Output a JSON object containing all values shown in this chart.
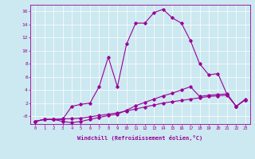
{
  "xlabel": "Windchill (Refroidissement éolien,°C)",
  "background_color": "#cce8f0",
  "line_color": "#990099",
  "xlim": [
    -0.5,
    23.5
  ],
  "ylim": [
    -1.2,
    17
  ],
  "yticks": [
    0,
    2,
    4,
    6,
    8,
    10,
    12,
    14,
    16
  ],
  "ytick_labels": [
    "-0",
    "2",
    "4",
    "6",
    "8",
    "10",
    "12",
    "14",
    "16"
  ],
  "xticks": [
    0,
    1,
    2,
    3,
    4,
    5,
    6,
    7,
    8,
    9,
    10,
    11,
    12,
    13,
    14,
    15,
    16,
    17,
    18,
    19,
    20,
    21,
    22,
    23
  ],
  "lines": [
    {
      "x": [
        0,
        1,
        2,
        3,
        4,
        5,
        6,
        7,
        8,
        9,
        10,
        11,
        12,
        13,
        14,
        15,
        16,
        17,
        18,
        19,
        20,
        21,
        22,
        23
      ],
      "y": [
        -0.8,
        -0.5,
        -0.5,
        -0.4,
        -0.4,
        -0.3,
        -0.1,
        0.1,
        0.3,
        0.5,
        0.8,
        1.1,
        1.4,
        1.7,
        2.0,
        2.2,
        2.4,
        2.6,
        2.8,
        3.0,
        3.1,
        3.2,
        1.5,
        2.5
      ]
    },
    {
      "x": [
        0,
        1,
        2,
        3,
        4,
        5,
        6,
        7,
        8,
        9,
        10,
        11,
        12,
        13,
        14,
        15,
        16,
        17,
        18,
        19,
        20,
        21,
        22,
        23
      ],
      "y": [
        -0.8,
        -0.5,
        -0.5,
        -0.8,
        -1.0,
        -0.8,
        -0.5,
        -0.2,
        0.1,
        0.3,
        0.9,
        1.6,
        2.1,
        2.6,
        3.1,
        3.5,
        4.0,
        4.5,
        3.0,
        3.2,
        3.3,
        3.4,
        1.5,
        2.6
      ]
    },
    {
      "x": [
        0,
        1,
        2,
        3,
        4,
        5,
        6,
        7,
        8,
        9,
        10,
        11,
        12,
        13,
        14,
        15,
        16,
        17,
        18,
        19,
        20,
        21,
        22,
        23
      ],
      "y": [
        -0.8,
        -0.5,
        -0.5,
        -0.5,
        1.5,
        1.8,
        2.0,
        4.5,
        9.0,
        4.5,
        11.0,
        14.2,
        14.2,
        15.8,
        16.3,
        15.0,
        14.2,
        11.5,
        8.0,
        6.3,
        6.5,
        3.3,
        1.5,
        2.5
      ]
    }
  ]
}
